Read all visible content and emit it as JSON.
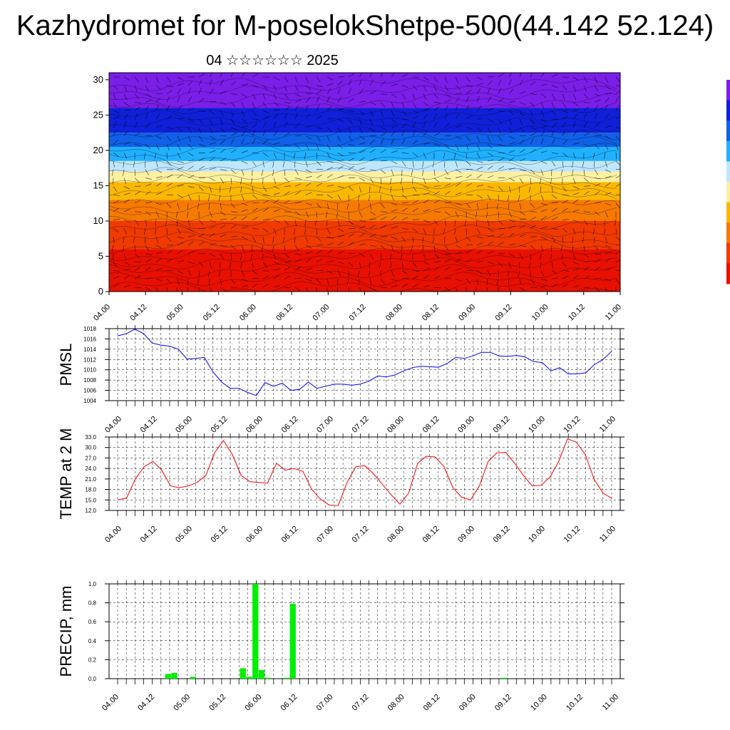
{
  "header": {
    "title": "Kazhydromet for M-poselokShetpe-500(44.142 52.124)",
    "subtitle": "04 ☆☆☆☆☆☆ 2025"
  },
  "colors": {
    "pmsl_line": "#0000ff",
    "temp_line": "#ff0000",
    "precip_bar": "#00ee00",
    "frame": "#000000"
  },
  "chart_data": [
    {
      "type": "heatmap",
      "title": "",
      "xlabel": "",
      "ylabel": "",
      "x_ticks": [
        "04.00",
        "04.12",
        "05.00",
        "05.12",
        "06.00",
        "06.12",
        "07.00",
        "07.12",
        "08.00",
        "08.12",
        "09.00",
        "09.12",
        "10.00",
        "10.12",
        "11.00"
      ],
      "y_ticks": [
        0,
        5,
        10,
        15,
        20,
        25,
        30
      ],
      "ylim": [
        0,
        31
      ],
      "color_bands": [
        {
          "from": 0,
          "to": 6,
          "color": "#e81000"
        },
        {
          "from": 6,
          "to": 10,
          "color": "#f03a00"
        },
        {
          "from": 10,
          "to": 13,
          "color": "#f67a00"
        },
        {
          "from": 13,
          "to": 15.5,
          "color": "#fbb800"
        },
        {
          "from": 15.5,
          "to": 17,
          "color": "#fff0a0"
        },
        {
          "from": 17,
          "to": 18.5,
          "color": "#bfe6ff"
        },
        {
          "from": 18.5,
          "to": 20.5,
          "color": "#20b0ff"
        },
        {
          "from": 20.5,
          "to": 22.5,
          "color": "#1060e8"
        },
        {
          "from": 22.5,
          "to": 26,
          "color": "#1020d8"
        },
        {
          "from": 26,
          "to": 31,
          "color": "#7a1ee8"
        }
      ],
      "overlay": "wind barbs"
    },
    {
      "type": "line",
      "ylabel": "PMSL",
      "x_ticks": [
        "04.00",
        "04.12",
        "05.00",
        "05.12",
        "06.00",
        "06.12",
        "07.00",
        "07.12",
        "08.00",
        "08.12",
        "09.00",
        "09.12",
        "10.00",
        "10.12",
        "11.00"
      ],
      "y_ticks": [
        "1004",
        "1006",
        "1008",
        "1010",
        "1012",
        "1014",
        "1016",
        "1018"
      ],
      "ylim": [
        1004,
        1018
      ],
      "series": [
        {
          "values": [
            1016.6,
            1017.0,
            1017.9,
            1017.0,
            1015.2,
            1014.8,
            1014.6,
            1014.0,
            1012.1,
            1012.2,
            1012.4,
            1009.6,
            1007.6,
            1006.4,
            1006.4,
            1005.6,
            1005.0,
            1007.5,
            1006.8,
            1007.4,
            1006.0,
            1006.2,
            1007.6,
            1006.4,
            1006.8,
            1007.2,
            1007.2,
            1007.0,
            1007.2,
            1007.8,
            1008.8,
            1008.6,
            1009.0,
            1009.8,
            1010.4,
            1010.7,
            1010.6,
            1010.5,
            1011.2,
            1012.4,
            1012.2,
            1012.7,
            1013.4,
            1013.4,
            1012.7,
            1012.6,
            1012.8,
            1012.5,
            1011.6,
            1011.4,
            1009.8,
            1010.4,
            1009.2,
            1009.2,
            1009.4,
            1011.0,
            1012.0,
            1013.6
          ]
        }
      ]
    },
    {
      "type": "line",
      "ylabel": "TEMP at 2 M",
      "x_ticks": [
        "04.00",
        "04.12",
        "05.00",
        "05.12",
        "06.00",
        "06.12",
        "07.00",
        "07.12",
        "08.00",
        "08.12",
        "09.00",
        "09.12",
        "10.00",
        "10.12",
        "11.00"
      ],
      "y_ticks": [
        "12.0",
        "15.0",
        "18.0",
        "21.0",
        "24.0",
        "27.0",
        "30.0",
        "33.0"
      ],
      "ylim": [
        12,
        33
      ],
      "series": [
        {
          "values": [
            15.0,
            15.5,
            21.0,
            24.5,
            26.0,
            23.5,
            19.0,
            18.5,
            19.0,
            20.0,
            22.0,
            28.5,
            32.0,
            28.0,
            22.0,
            20.2,
            20.0,
            19.8,
            25.5,
            23.5,
            24.0,
            23.2,
            18.0,
            15.2,
            13.5,
            13.4,
            20.0,
            24.5,
            24.8,
            22.5,
            19.5,
            16.5,
            13.8,
            17.0,
            25.5,
            27.5,
            27.3,
            24.5,
            18.5,
            15.8,
            15.0,
            19.0,
            26.0,
            28.5,
            28.6,
            25.5,
            22.0,
            19.0,
            19.2,
            21.5,
            26.0,
            32.5,
            31.5,
            28.0,
            21.0,
            17.0,
            15.5
          ]
        }
      ]
    },
    {
      "type": "bar",
      "ylabel": "PRECIP, mm",
      "x_ticks": [
        "04.00",
        "04.12",
        "05.00",
        "05.12",
        "06.00",
        "06.12",
        "07.00",
        "07.12",
        "08.00",
        "08.12",
        "09.00",
        "09.12",
        "10.00",
        "10.12",
        "11.00"
      ],
      "y_ticks": [
        "0.0",
        "0.2",
        "0.4",
        "0.6",
        "0.8",
        "1.0"
      ],
      "ylim": [
        0,
        1.0
      ],
      "values": [
        0,
        0,
        0,
        0,
        0,
        0,
        0,
        0,
        0,
        0.05,
        0.06,
        0,
        0,
        0.02,
        0,
        0,
        0,
        0,
        0,
        0,
        0,
        0.11,
        0.02,
        1.0,
        0.09,
        0.01,
        0,
        0,
        0.01,
        0.79,
        0,
        0,
        0,
        0,
        0,
        0,
        0,
        0,
        0,
        0,
        0,
        0,
        0,
        0,
        0,
        0,
        0,
        0,
        0,
        0,
        0,
        0,
        0,
        0,
        0,
        0,
        0,
        0,
        0,
        0,
        0,
        0,
        0,
        0.01,
        0,
        0,
        0,
        0,
        0,
        0,
        0,
        0,
        0,
        0,
        0,
        0,
        0,
        0,
        0,
        0,
        0,
        0
      ]
    }
  ]
}
